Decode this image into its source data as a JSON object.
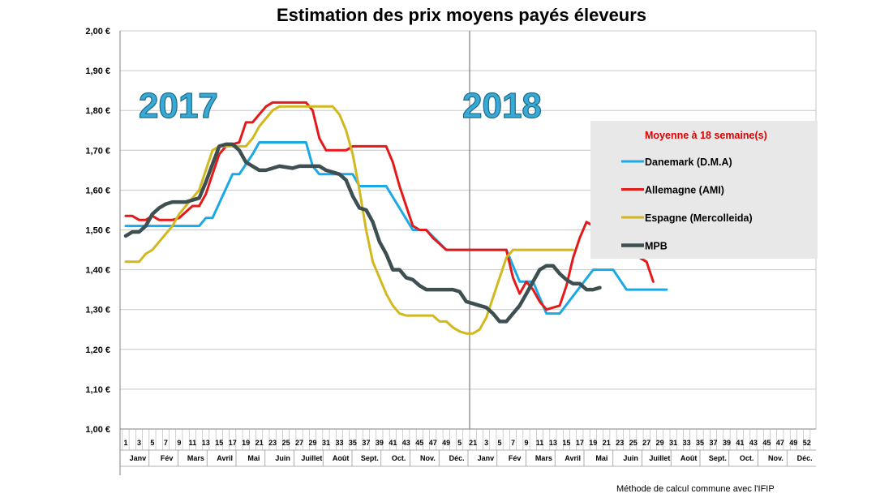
{
  "chart_data": {
    "type": "line",
    "title": "Estimation des prix moyens payés éleveurs",
    "note": "Méthode de calcul commune avec l'IFIP",
    "y_ticks": [
      "1,00 €",
      "1,10 €",
      "1,20 €",
      "1,30 €",
      "1,40 €",
      "1,50 €",
      "1,60 €",
      "1,70 €",
      "1,80 €",
      "1,90 €",
      "2,00 €"
    ],
    "ylim": [
      1.0,
      2.0
    ],
    "year_labels": [
      "2017",
      "2018"
    ],
    "week_ticks_2017": [
      "1",
      "3",
      "5",
      "7",
      "9",
      "11",
      "13",
      "15",
      "17",
      "19",
      "21",
      "23",
      "25",
      "27",
      "29",
      "31",
      "33",
      "35",
      "37",
      "39",
      "41",
      "43",
      "45",
      "47",
      "49",
      "5"
    ],
    "week_ticks_2018": [
      "21",
      "3",
      "5",
      "7",
      "9",
      "11",
      "13",
      "15",
      "17",
      "19",
      "21",
      "23",
      "25",
      "27",
      "29",
      "31",
      "33",
      "35",
      "37",
      "39",
      "41",
      "43",
      "45",
      "47",
      "49",
      "52"
    ],
    "months": [
      "Janv",
      "Fév",
      "Mars",
      "Avril",
      "Mai",
      "Juin",
      "Juillet",
      "Août",
      "Sept.",
      "Oct.",
      "Nov.",
      "Déc.",
      "Janv",
      "Fév",
      "Mars",
      "Avril",
      "Mai",
      "Juin",
      "Juillet",
      "Août",
      "Sept.",
      "Oct.",
      "Nov.",
      "Déc."
    ],
    "legend": {
      "title": "Moyenne à  18 semaine(s)",
      "placement": "right"
    },
    "series": [
      {
        "name": "Danemark (D.M.A)",
        "color": "#1ba9e6",
        "points": [
          [
            1,
            1.51
          ],
          [
            12,
            1.51
          ],
          [
            13,
            1.53
          ],
          [
            14,
            1.53
          ],
          [
            17,
            1.64
          ],
          [
            18,
            1.64
          ],
          [
            20,
            1.69
          ],
          [
            21,
            1.72
          ],
          [
            28,
            1.72
          ],
          [
            29,
            1.66
          ],
          [
            30,
            1.64
          ],
          [
            35,
            1.64
          ],
          [
            36,
            1.61
          ],
          [
            40,
            1.61
          ],
          [
            44,
            1.5
          ],
          [
            46,
            1.5
          ],
          [
            49,
            1.45
          ],
          [
            58,
            1.45
          ],
          [
            60,
            1.37
          ],
          [
            62,
            1.37
          ],
          [
            64,
            1.29
          ],
          [
            66,
            1.29
          ],
          [
            71,
            1.4
          ],
          [
            74,
            1.4
          ],
          [
            76,
            1.35
          ],
          [
            82,
            1.35
          ]
        ]
      },
      {
        "name": "Allemagne (AMI)",
        "color": "#e4191a",
        "points": [
          [
            1,
            1.535
          ],
          [
            2,
            1.535
          ],
          [
            3,
            1.525
          ],
          [
            4,
            1.525
          ],
          [
            5,
            1.535
          ],
          [
            6,
            1.525
          ],
          [
            8,
            1.525
          ],
          [
            9,
            1.53
          ],
          [
            11,
            1.56
          ],
          [
            12,
            1.56
          ],
          [
            13,
            1.59
          ],
          [
            14,
            1.64
          ],
          [
            15,
            1.69
          ],
          [
            16,
            1.71
          ],
          [
            18,
            1.72
          ],
          [
            19,
            1.77
          ],
          [
            20,
            1.77
          ],
          [
            22,
            1.81
          ],
          [
            23,
            1.82
          ],
          [
            28,
            1.82
          ],
          [
            29,
            1.8
          ],
          [
            30,
            1.73
          ],
          [
            31,
            1.7
          ],
          [
            34,
            1.7
          ],
          [
            35,
            1.71
          ],
          [
            40,
            1.71
          ],
          [
            41,
            1.67
          ],
          [
            42,
            1.61
          ],
          [
            43,
            1.56
          ],
          [
            44,
            1.51
          ],
          [
            45,
            1.5
          ],
          [
            46,
            1.5
          ],
          [
            47,
            1.48
          ],
          [
            49,
            1.45
          ],
          [
            58,
            1.45
          ],
          [
            59,
            1.38
          ],
          [
            60,
            1.34
          ],
          [
            61,
            1.37
          ],
          [
            62,
            1.35
          ],
          [
            63,
            1.32
          ],
          [
            64,
            1.3
          ],
          [
            66,
            1.31
          ],
          [
            67,
            1.36
          ],
          [
            68,
            1.43
          ],
          [
            69,
            1.48
          ],
          [
            70,
            1.52
          ],
          [
            71,
            1.51
          ],
          [
            72,
            1.47
          ],
          [
            73,
            1.45
          ],
          [
            75,
            1.45
          ],
          [
            76,
            1.44
          ],
          [
            77,
            1.44
          ],
          [
            78,
            1.43
          ],
          [
            79,
            1.42
          ],
          [
            80,
            1.37
          ]
        ]
      },
      {
        "name": "Espagne (Mercolleida)",
        "color": "#d2b81e",
        "points": [
          [
            1,
            1.42
          ],
          [
            3,
            1.42
          ],
          [
            4,
            1.44
          ],
          [
            5,
            1.45
          ],
          [
            6,
            1.47
          ],
          [
            7,
            1.49
          ],
          [
            8,
            1.51
          ],
          [
            9,
            1.54
          ],
          [
            10,
            1.56
          ],
          [
            11,
            1.58
          ],
          [
            12,
            1.6
          ],
          [
            13,
            1.65
          ],
          [
            14,
            1.7
          ],
          [
            15,
            1.71
          ],
          [
            16,
            1.71
          ],
          [
            17,
            1.71
          ],
          [
            18,
            1.71
          ],
          [
            19,
            1.71
          ],
          [
            20,
            1.73
          ],
          [
            21,
            1.76
          ],
          [
            22,
            1.78
          ],
          [
            23,
            1.8
          ],
          [
            24,
            1.81
          ],
          [
            25,
            1.81
          ],
          [
            32,
            1.81
          ],
          [
            33,
            1.79
          ],
          [
            34,
            1.75
          ],
          [
            35,
            1.69
          ],
          [
            36,
            1.6
          ],
          [
            37,
            1.5
          ],
          [
            38,
            1.42
          ],
          [
            39,
            1.38
          ],
          [
            40,
            1.34
          ],
          [
            41,
            1.31
          ],
          [
            42,
            1.29
          ],
          [
            43,
            1.285
          ],
          [
            47,
            1.285
          ],
          [
            48,
            1.27
          ],
          [
            49,
            1.27
          ],
          [
            50,
            1.255
          ],
          [
            51,
            1.245
          ],
          [
            52,
            1.24
          ],
          [
            53,
            1.24
          ],
          [
            54,
            1.25
          ],
          [
            55,
            1.28
          ],
          [
            56,
            1.33
          ],
          [
            57,
            1.38
          ],
          [
            58,
            1.43
          ],
          [
            59,
            1.45
          ],
          [
            68,
            1.45
          ]
        ]
      },
      {
        "name": "MPB",
        "color": "#3d4f51",
        "points": [
          [
            1,
            1.485
          ],
          [
            2,
            1.495
          ],
          [
            3,
            1.495
          ],
          [
            4,
            1.51
          ],
          [
            5,
            1.54
          ],
          [
            6,
            1.555
          ],
          [
            7,
            1.565
          ],
          [
            8,
            1.57
          ],
          [
            10,
            1.57
          ],
          [
            11,
            1.575
          ],
          [
            12,
            1.58
          ],
          [
            13,
            1.62
          ],
          [
            14,
            1.665
          ],
          [
            15,
            1.71
          ],
          [
            16,
            1.715
          ],
          [
            17,
            1.715
          ],
          [
            18,
            1.7
          ],
          [
            19,
            1.67
          ],
          [
            20,
            1.66
          ],
          [
            21,
            1.65
          ],
          [
            22,
            1.65
          ],
          [
            23,
            1.655
          ],
          [
            24,
            1.66
          ],
          [
            26,
            1.655
          ],
          [
            27,
            1.66
          ],
          [
            30,
            1.66
          ],
          [
            31,
            1.65
          ],
          [
            32,
            1.645
          ],
          [
            33,
            1.64
          ],
          [
            34,
            1.625
          ],
          [
            35,
            1.585
          ],
          [
            36,
            1.555
          ],
          [
            37,
            1.55
          ],
          [
            38,
            1.52
          ],
          [
            39,
            1.47
          ],
          [
            40,
            1.44
          ],
          [
            41,
            1.4
          ],
          [
            42,
            1.4
          ],
          [
            43,
            1.38
          ],
          [
            44,
            1.375
          ],
          [
            45,
            1.36
          ],
          [
            46,
            1.35
          ],
          [
            48,
            1.35
          ],
          [
            50,
            1.35
          ],
          [
            51,
            1.345
          ],
          [
            52,
            1.32
          ],
          [
            53,
            1.315
          ],
          [
            54,
            1.31
          ],
          [
            55,
            1.305
          ],
          [
            56,
            1.29
          ],
          [
            57,
            1.27
          ],
          [
            58,
            1.27
          ],
          [
            59,
            1.29
          ],
          [
            60,
            1.31
          ],
          [
            61,
            1.34
          ],
          [
            62,
            1.37
          ],
          [
            63,
            1.4
          ],
          [
            64,
            1.41
          ],
          [
            65,
            1.41
          ],
          [
            66,
            1.39
          ],
          [
            67,
            1.375
          ],
          [
            68,
            1.365
          ],
          [
            69,
            1.365
          ],
          [
            70,
            1.35
          ],
          [
            71,
            1.35
          ],
          [
            72,
            1.355
          ]
        ]
      }
    ]
  }
}
